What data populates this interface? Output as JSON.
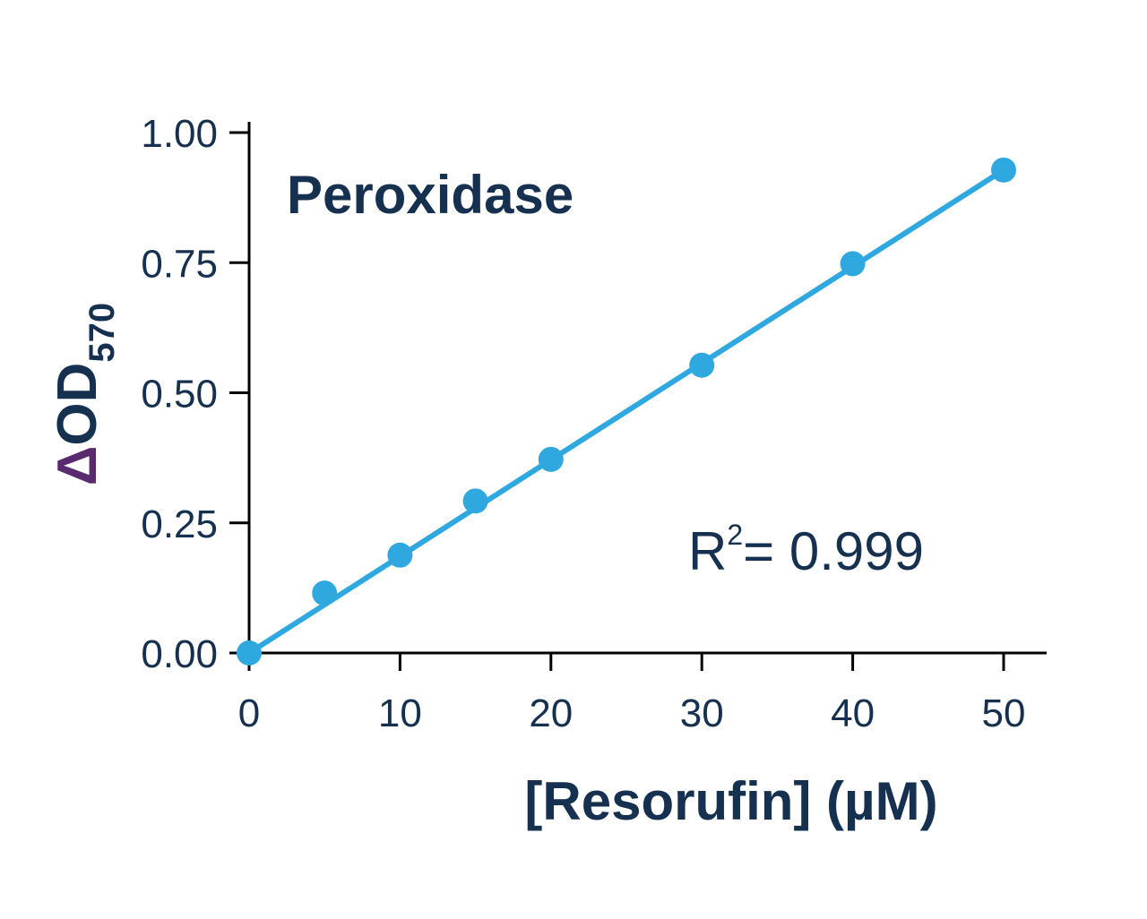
{
  "chart_data": {
    "type": "scatter",
    "title": "Peroxidase",
    "xlabel": "[Resorufin] (µM)",
    "ylabel": {
      "delta": "Δ",
      "main": "OD",
      "subscript": "570"
    },
    "xlim": [
      0,
      52
    ],
    "ylim": [
      0,
      1.0
    ],
    "x_ticks": [
      0,
      10,
      20,
      30,
      40,
      50
    ],
    "x_tick_labels": [
      "0",
      "10",
      "20",
      "30",
      "40",
      "50"
    ],
    "y_ticks": [
      0,
      0.25,
      0.5,
      0.75,
      1.0
    ],
    "y_tick_labels": [
      "0.00",
      "0.25",
      "0.50",
      "0.75",
      "1.00"
    ],
    "series": [
      {
        "x": [
          0,
          5,
          10,
          15,
          20,
          30,
          40,
          50
        ],
        "y": [
          0.0,
          0.115,
          0.188,
          0.292,
          0.372,
          0.553,
          0.748,
          0.928
        ],
        "color": "#2fa8e0"
      }
    ],
    "fit_line": {
      "x": [
        0,
        50
      ],
      "y": [
        0.0,
        0.928
      ],
      "color": "#2fa8e0"
    },
    "annotation": {
      "prefix": "R",
      "superscript": "2",
      "suffix": "= 0.999"
    },
    "grid": false,
    "colors": {
      "text": "#16304f",
      "delta": "#5a2a6e",
      "axis": "#000000",
      "series": "#2fa8e0"
    }
  }
}
